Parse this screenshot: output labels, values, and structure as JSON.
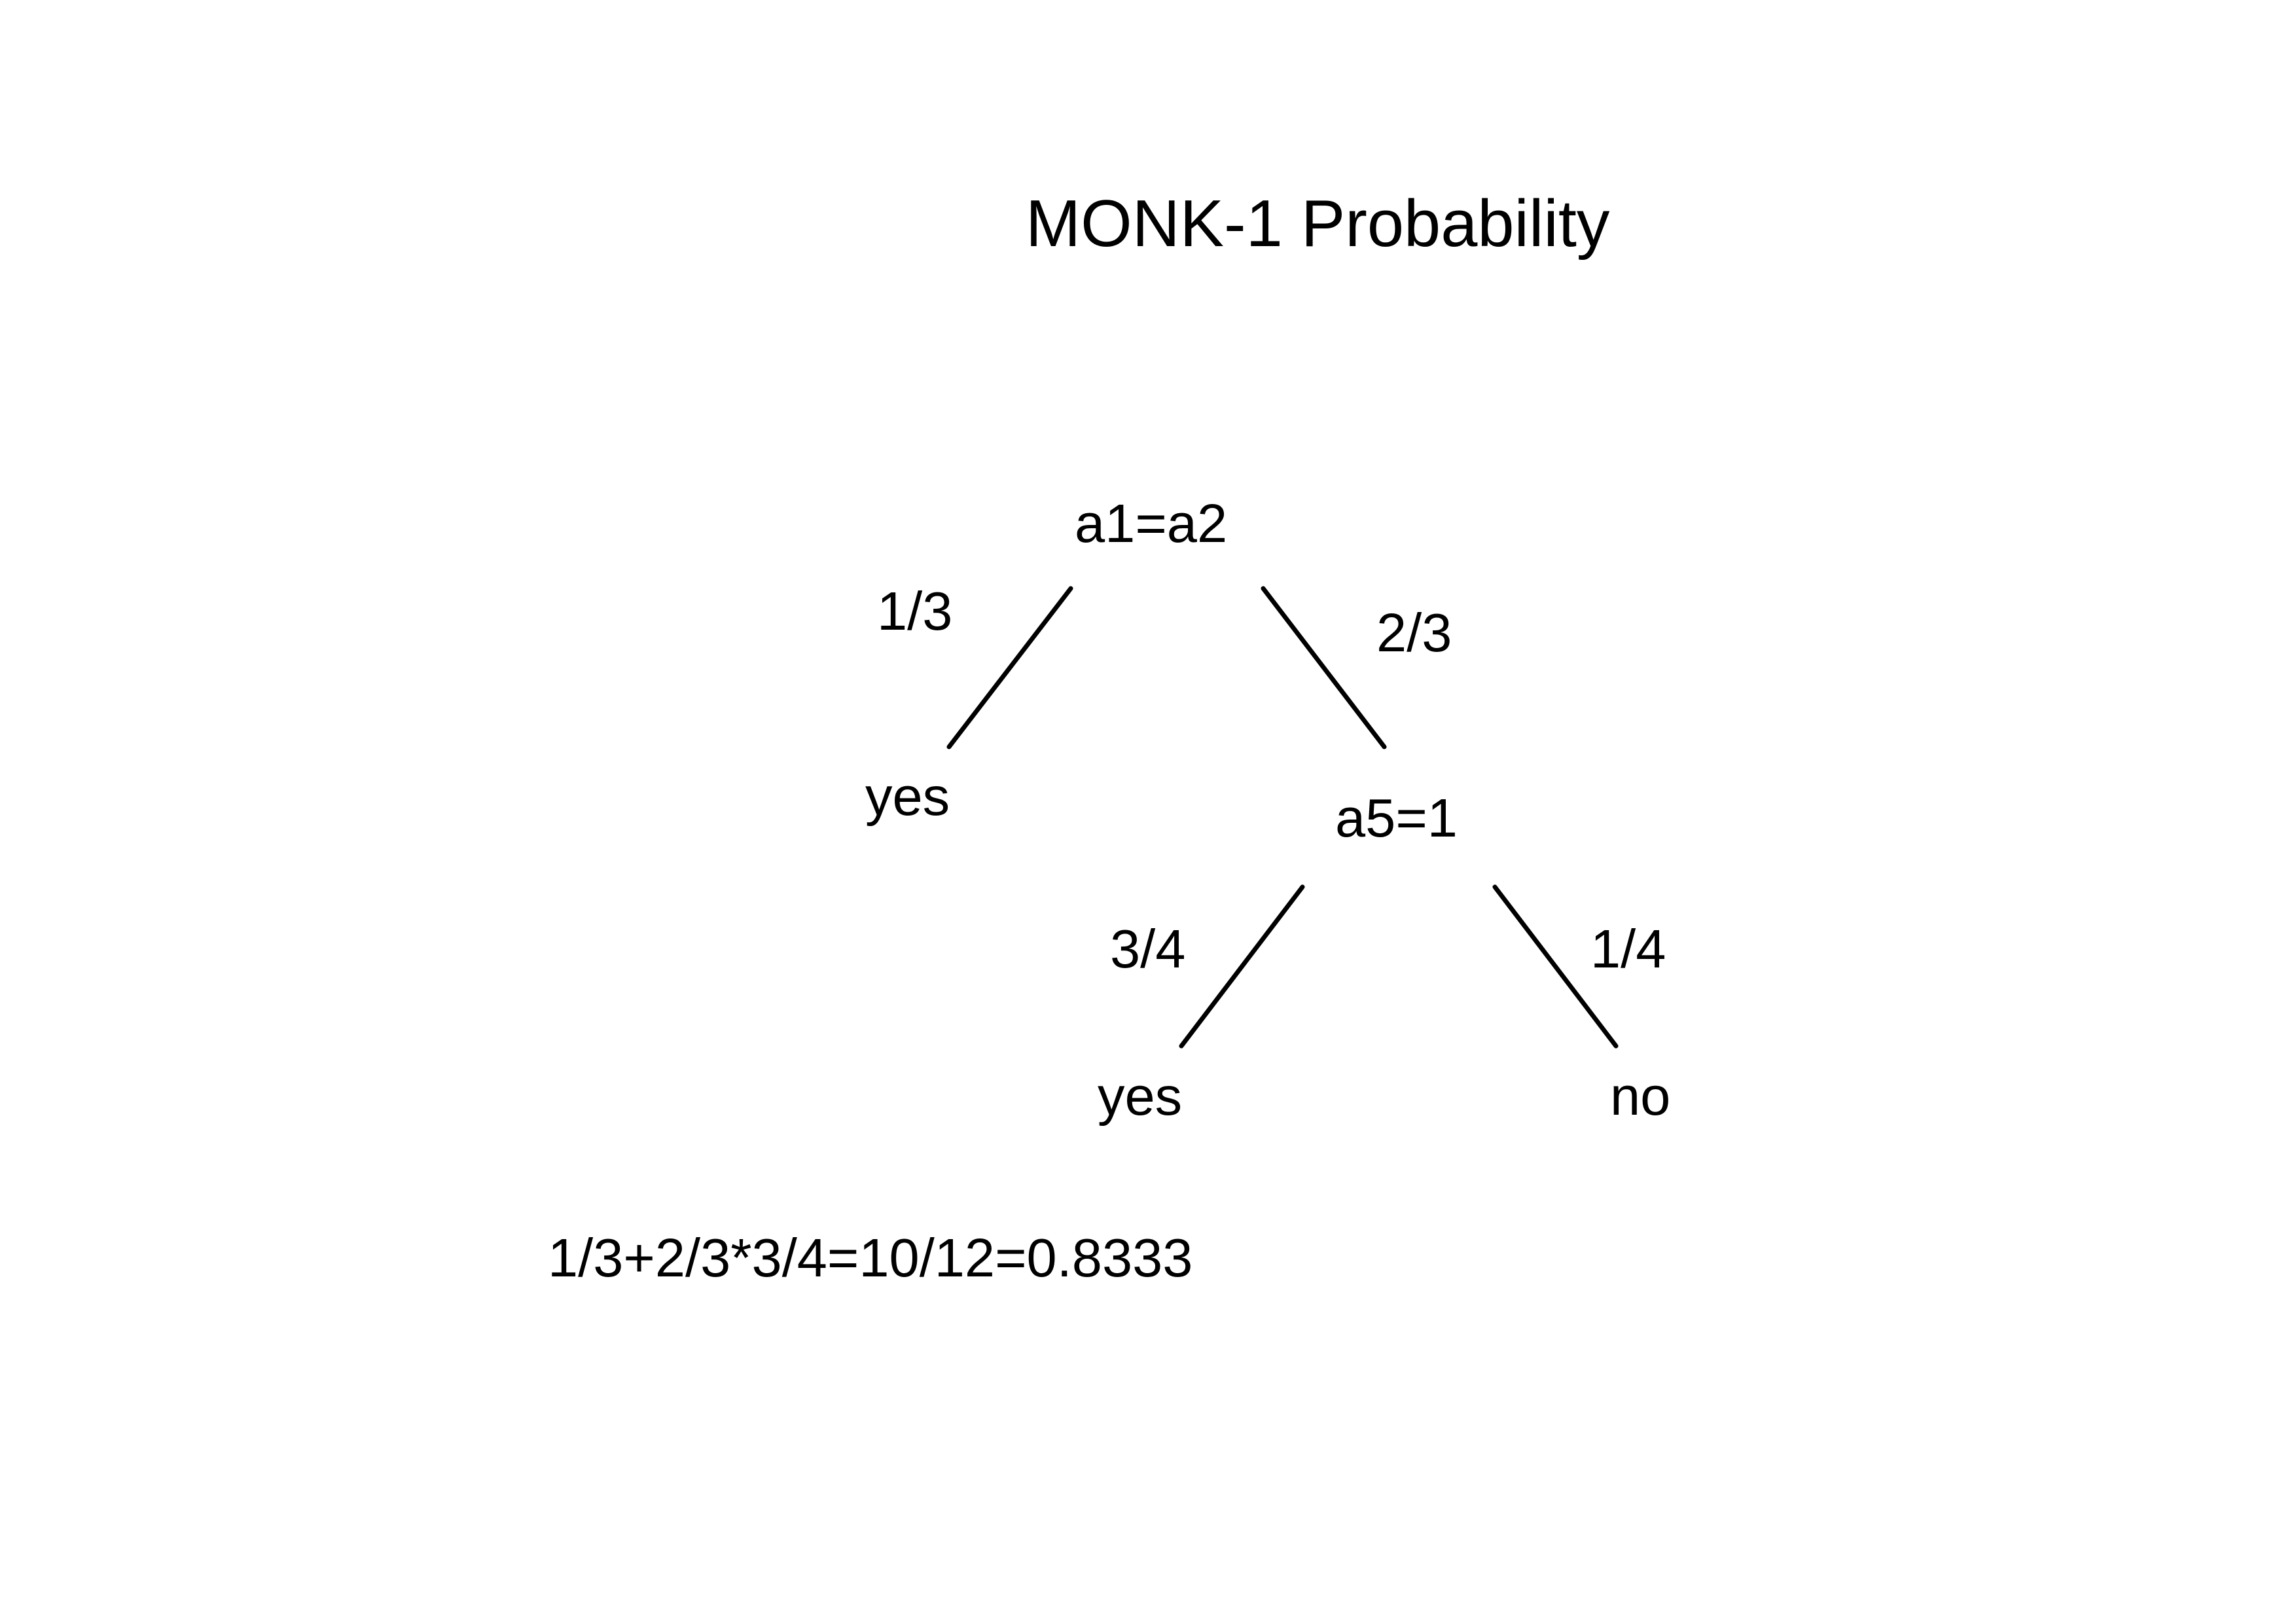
{
  "title": "MONK-1 Probability",
  "tree": {
    "root": {
      "label": "a1=a2",
      "left_edge": "1/3",
      "right_edge": "2/3",
      "left_leaf": "yes",
      "right_node": {
        "label": "a5=1",
        "left_edge": "3/4",
        "right_edge": "1/4",
        "left_leaf": "yes",
        "right_leaf": "no"
      }
    }
  },
  "formula": "1/3+2/3*3/4=10/12=0.8333"
}
